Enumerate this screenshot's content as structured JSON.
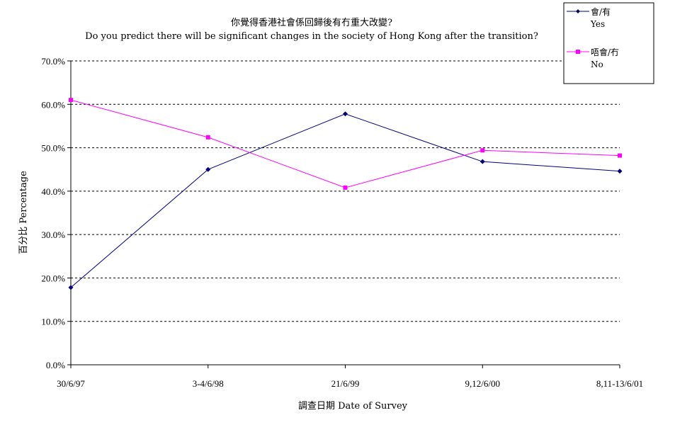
{
  "chart_data": {
    "type": "line",
    "title": "你覺得香港社會係回歸後有冇重大改變?",
    "subtitle": "Do you predict there will be significant changes in the society of Hong Kong after the transition?",
    "xlabel": "調查日期 Date of Survey",
    "ylabel": "百分比 Percentage",
    "categories": [
      "30/6/97",
      "3-4/6/98",
      "21/6/99",
      "9,12/6/00",
      "8,11-13/6/01"
    ],
    "ylim": [
      0,
      70
    ],
    "yticks": [
      "0.0%",
      "10.0%",
      "20.0%",
      "30.0%",
      "40.0%",
      "50.0%",
      "60.0%",
      "70.0%"
    ],
    "grid": true,
    "legend_position": "top-right",
    "series": [
      {
        "name": "會/有",
        "name_en": "Yes",
        "color": "#000080",
        "marker": "diamond",
        "values": [
          17.8,
          45.0,
          57.8,
          46.8,
          44.6
        ]
      },
      {
        "name": "唔會/冇",
        "name_en": "No",
        "color": "#FF00FF",
        "marker": "square",
        "values": [
          61.0,
          52.4,
          40.8,
          49.4,
          48.2
        ]
      }
    ]
  }
}
